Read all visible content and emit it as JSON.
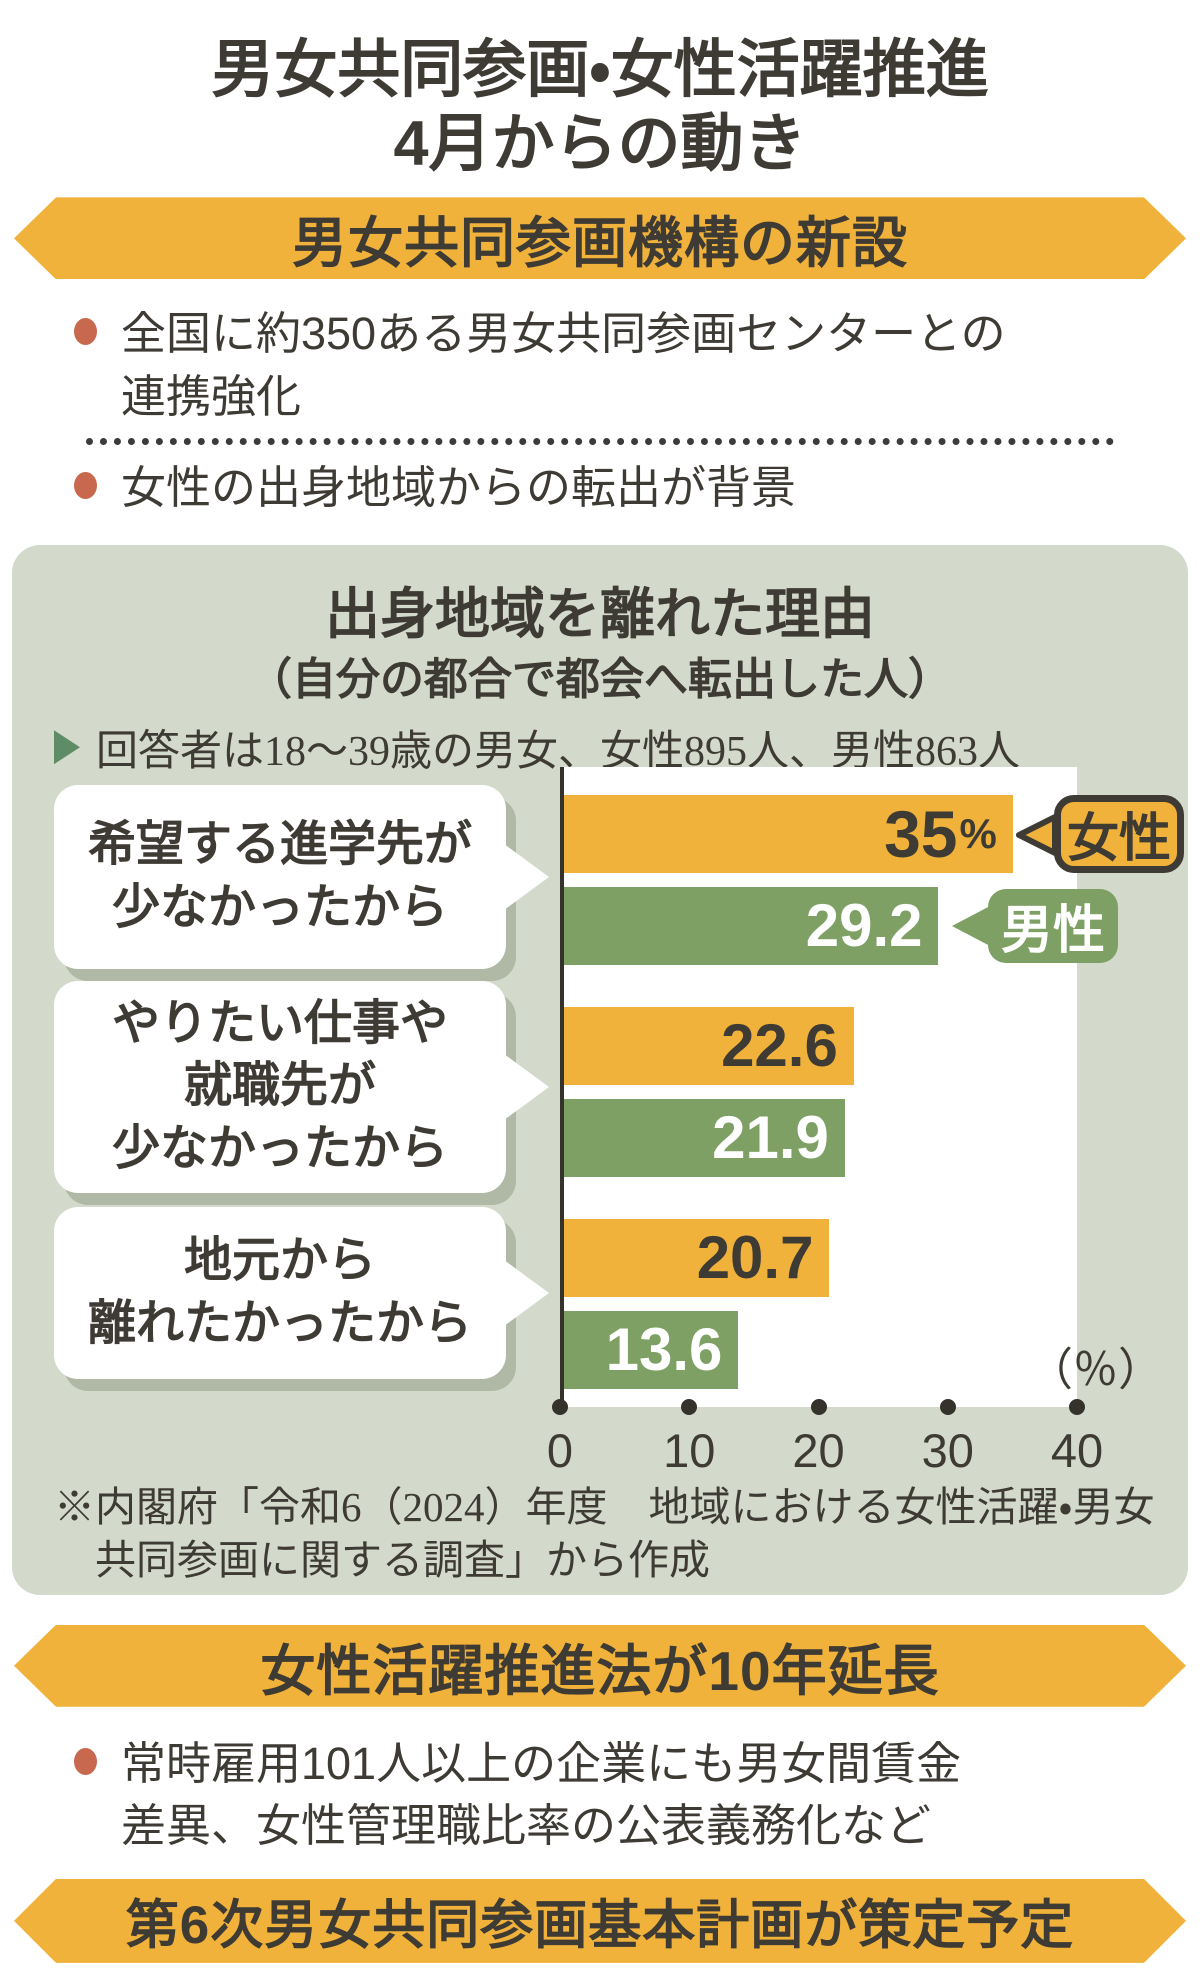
{
  "theme": {
    "yellow": "#F0B23A",
    "green": "#7FA064",
    "panel_bg": "#D3DACB",
    "bullet_red": "#C8684E",
    "ink": "#3E3A34",
    "marker_green": "#5D8C66",
    "page_bg": "#FFFFFF",
    "bar_label_light": "#FFFFFF"
  },
  "title": {
    "lines": [
      "男女共同参画・女性活躍推進",
      "4月からの動き"
    ]
  },
  "banners": {
    "org": "男女共同参画機構の新設",
    "law": "女性活躍推進法が10年延長",
    "plan": "第6次男女共同参画基本計画が策定予定"
  },
  "org_section": {
    "bullet1_lines": [
      "全国に約350ある男女共同参画センターとの",
      "連携強化"
    ],
    "bullet2": "女性の出身地域からの転出が背景"
  },
  "law_section": {
    "bullet_lines": [
      "常時雇用101人以上の企業にも男女間賃金",
      "差異、女性管理職比率の公表義務化など"
    ]
  },
  "chart_data": {
    "type": "bar",
    "orientation": "horizontal",
    "title": "出身地域を離れた理由",
    "subtitle": "（自分の都合で都会へ転出した人）",
    "note": "回答者は18～39歳の男女、女性895人、男性863人",
    "unit_label": "（％）",
    "categories": [
      "希望する進学先が少なかったから",
      "やりたい仕事や就職先が少なかったから",
      "地元から離れたかったから"
    ],
    "category_lines": [
      [
        "希望する進学先が",
        "少なかったから"
      ],
      [
        "やりたい仕事や",
        "就職先が",
        "少なかったから"
      ],
      [
        "地元から",
        "離れたかったから"
      ]
    ],
    "series": [
      {
        "name": "女性",
        "values": [
          35,
          22.6,
          20.7
        ],
        "labels": [
          [
            "35",
            "%"
          ],
          [
            "22.6",
            ""
          ],
          [
            "20.7",
            ""
          ]
        ],
        "color": "#F0B23A"
      },
      {
        "name": "男性",
        "values": [
          29.2,
          21.9,
          13.6
        ],
        "labels": [
          [
            "29.2",
            ""
          ],
          [
            "21.9",
            ""
          ],
          [
            "13.6",
            ""
          ]
        ],
        "color": "#7FA064"
      }
    ],
    "xlim": [
      0,
      40
    ],
    "ticks": [
      "0",
      "10",
      "20",
      "30",
      "40"
    ],
    "grid": false,
    "legend_position": "inline-badges",
    "source": "※内閣府「令和6（2024）年度　地域における女性活躍・男女共同参画に関する調査」から作成"
  }
}
